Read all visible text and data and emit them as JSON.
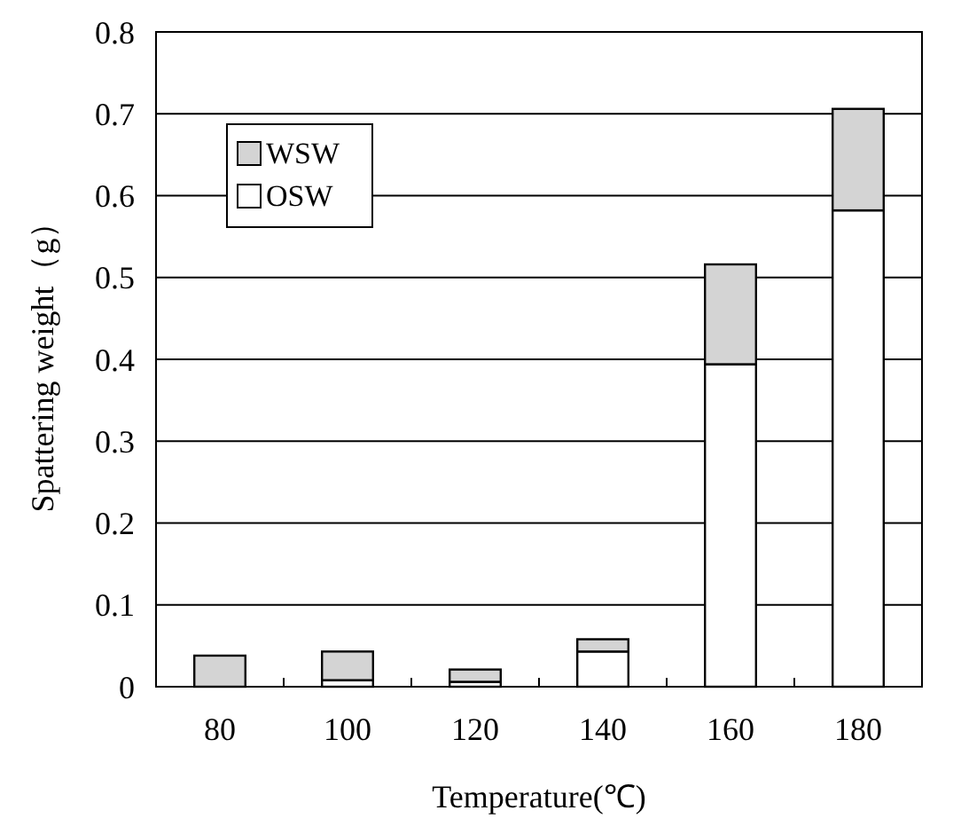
{
  "chart_data": {
    "type": "bar",
    "stacked": true,
    "xlabel": "Temperature(℃)",
    "ylabel": "Spattering weight（g）",
    "categories": [
      "80",
      "100",
      "120",
      "140",
      "160",
      "180"
    ],
    "series": [
      {
        "name": "OSW",
        "color": "#ffffff",
        "values": [
          0,
          0.008,
          0.006,
          0.043,
          0.394,
          0.582
        ]
      },
      {
        "name": "WSW",
        "color": "#d4d4d4",
        "values": [
          0.038,
          0.035,
          0.015,
          0.015,
          0.122,
          0.124
        ]
      }
    ],
    "ylim": [
      0,
      0.8
    ],
    "yticks": [
      {
        "value": 0,
        "label": "0"
      },
      0.1,
      0.2,
      0.3,
      0.4,
      0.5,
      0.6,
      0.7,
      0.8
    ],
    "grid": "y",
    "legend": "top left"
  }
}
